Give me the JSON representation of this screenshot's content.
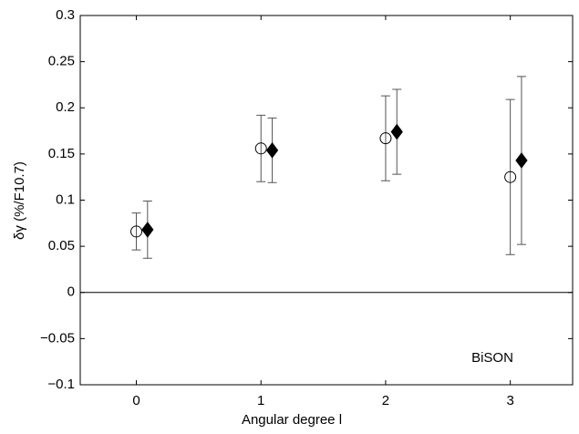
{
  "chart_data": {
    "type": "scatter",
    "xlabel": "Angular degree l",
    "ylabel": "δγ (%/F10.7)",
    "annotation": "BiSON",
    "series": [
      {
        "marker": "circle",
        "color": "#000000",
        "x": [
          0,
          1,
          2,
          3
        ],
        "values": [
          0.066,
          0.156,
          0.167,
          0.125
        ],
        "errors": [
          0.02,
          0.036,
          0.046,
          0.084
        ]
      },
      {
        "marker": "diamond",
        "color": "#000000",
        "x": [
          0.09,
          1.09,
          2.09,
          3.09
        ],
        "values": [
          0.068,
          0.154,
          0.174,
          0.143
        ],
        "errors": [
          0.031,
          0.035,
          0.046,
          0.091
        ]
      }
    ],
    "xlim": [
      -0.45,
      3.5
    ],
    "xticks": [
      0,
      1,
      2,
      3
    ],
    "ylim": [
      -0.1,
      0.3
    ],
    "yticks": [
      {
        "value": -0.1,
        "label": "−0.1"
      },
      {
        "value": -0.05,
        "label": "−0.05"
      },
      0,
      0.05,
      0.1,
      0.15,
      0.2,
      0.25,
      0.3
    ],
    "hlines": [
      0
    ]
  }
}
